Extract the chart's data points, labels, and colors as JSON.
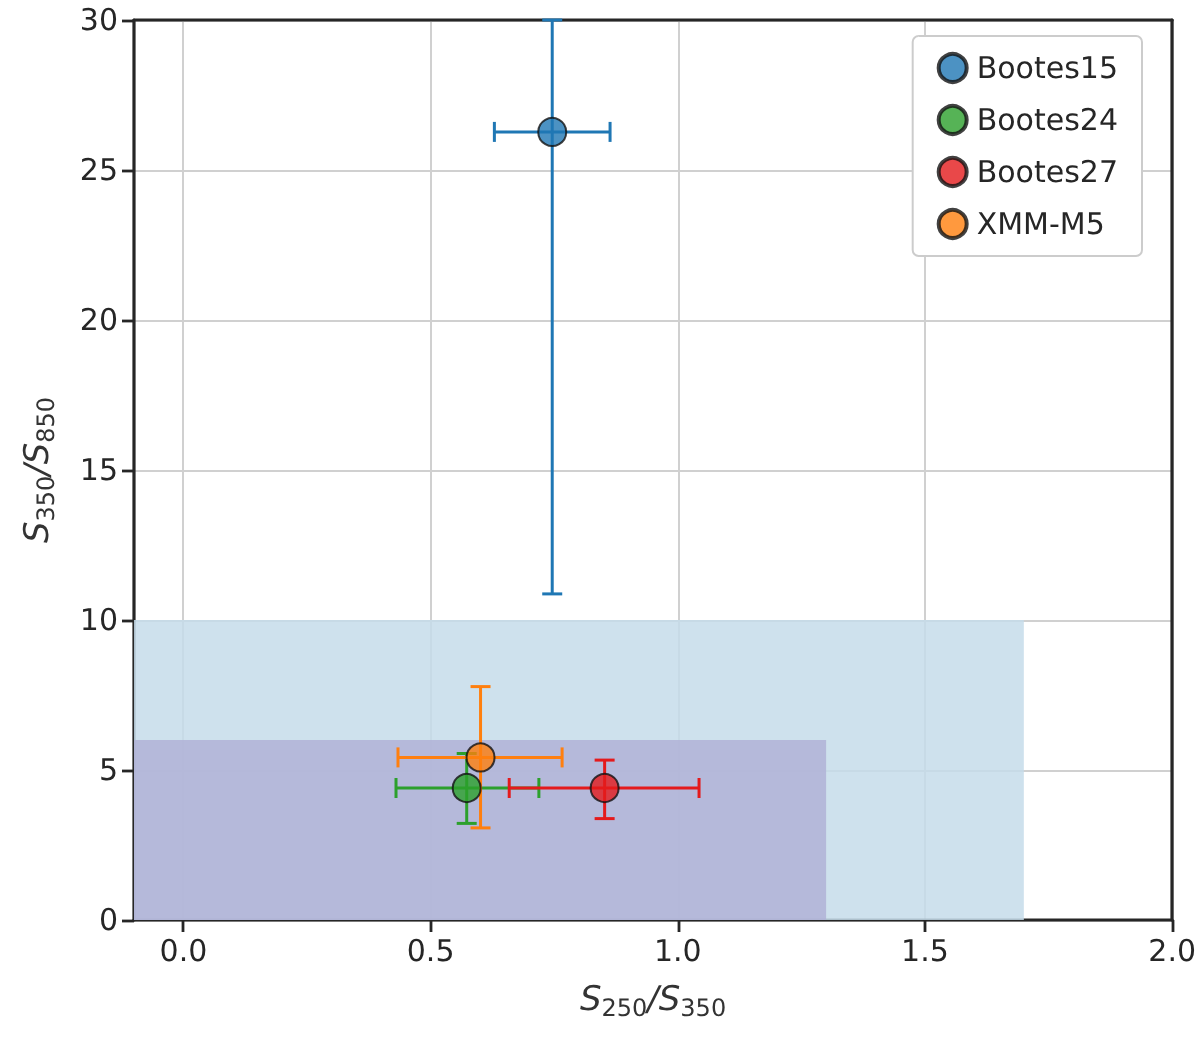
{
  "chart_data": {
    "type": "scatter",
    "xlabel": "S$_{250}$/S$_{350}$",
    "ylabel": "S$_{350}$/S$_{850}$",
    "xlim": [
      -0.1,
      2.0
    ],
    "xticks": [
      {
        "value": 0,
        "label": "0.0"
      },
      {
        "value": 0.5,
        "label": "0.5"
      },
      {
        "value": 1,
        "label": "1.0"
      },
      {
        "value": 1.5,
        "label": "1.5"
      },
      {
        "value": 2,
        "label": "2.0"
      }
    ],
    "ylim": [
      0,
      30
    ],
    "yticks": [
      0,
      5,
      10,
      15,
      20,
      25,
      30
    ],
    "grid": true,
    "legend": "top right",
    "series": [
      {
        "type": "area",
        "color": "#c6dcea",
        "x": [
          -0.1,
          1.7
        ],
        "values": [
          10,
          10
        ]
      },
      {
        "type": "area",
        "color": "#b0b2d6",
        "x": [
          -0.1,
          1.3
        ],
        "values": [
          6,
          6
        ]
      },
      {
        "name": "Bootes15",
        "marker": "circle",
        "color": "#1f77b4",
        "x": [
          0.746
        ],
        "values": [
          26.27
        ],
        "xerrors": [
          [
            0.629,
            0.863
          ]
        ],
        "errors": [
          [
            10.87,
            30
          ]
        ]
      },
      {
        "name": "Bootes24",
        "marker": "circle",
        "color": "#2ca02c",
        "x": [
          0.573
        ],
        "values": [
          4.4
        ],
        "xerrors": [
          [
            0.43,
            0.719
          ]
        ],
        "errors": [
          [
            3.22,
            5.55
          ]
        ]
      },
      {
        "name": "Bootes27",
        "marker": "circle",
        "color": "#e41a1c",
        "x": [
          0.852
        ],
        "values": [
          4.4
        ],
        "xerrors": [
          [
            0.659,
            1.043
          ]
        ],
        "errors": [
          [
            3.38,
            5.33
          ]
        ]
      },
      {
        "name": "XMM-M5",
        "marker": "circle",
        "color": "#ff7f0e",
        "x": [
          0.601
        ],
        "values": [
          5.42
        ],
        "xerrors": [
          [
            0.434,
            0.766
          ]
        ],
        "errors": [
          [
            3.07,
            7.78
          ]
        ]
      }
    ]
  }
}
